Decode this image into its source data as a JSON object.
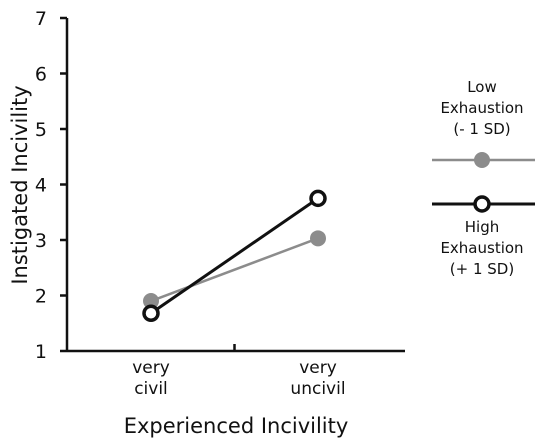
{
  "chart_data": {
    "type": "line",
    "title": "",
    "xlabel": "Experienced Incivility",
    "ylabel": "Instigated Incivility",
    "categories": [
      [
        "very",
        "civil"
      ],
      [
        "very",
        "uncivil"
      ]
    ],
    "ylim": [
      1,
      7
    ],
    "yticks": [
      1,
      2,
      3,
      4,
      5,
      6,
      7
    ],
    "grid": false,
    "legend_position": "right",
    "series": [
      {
        "name": [
          "Low",
          "Exhaustion",
          "(- 1 SD)"
        ],
        "values": [
          1.9,
          3.03
        ],
        "color": "#8c8c8c",
        "marker": "filled-circle"
      },
      {
        "name": [
          "High",
          "Exhaustion",
          "(+ 1 SD)"
        ],
        "values": [
          1.68,
          3.75
        ],
        "color": "#111111",
        "marker": "open-circle"
      }
    ]
  }
}
